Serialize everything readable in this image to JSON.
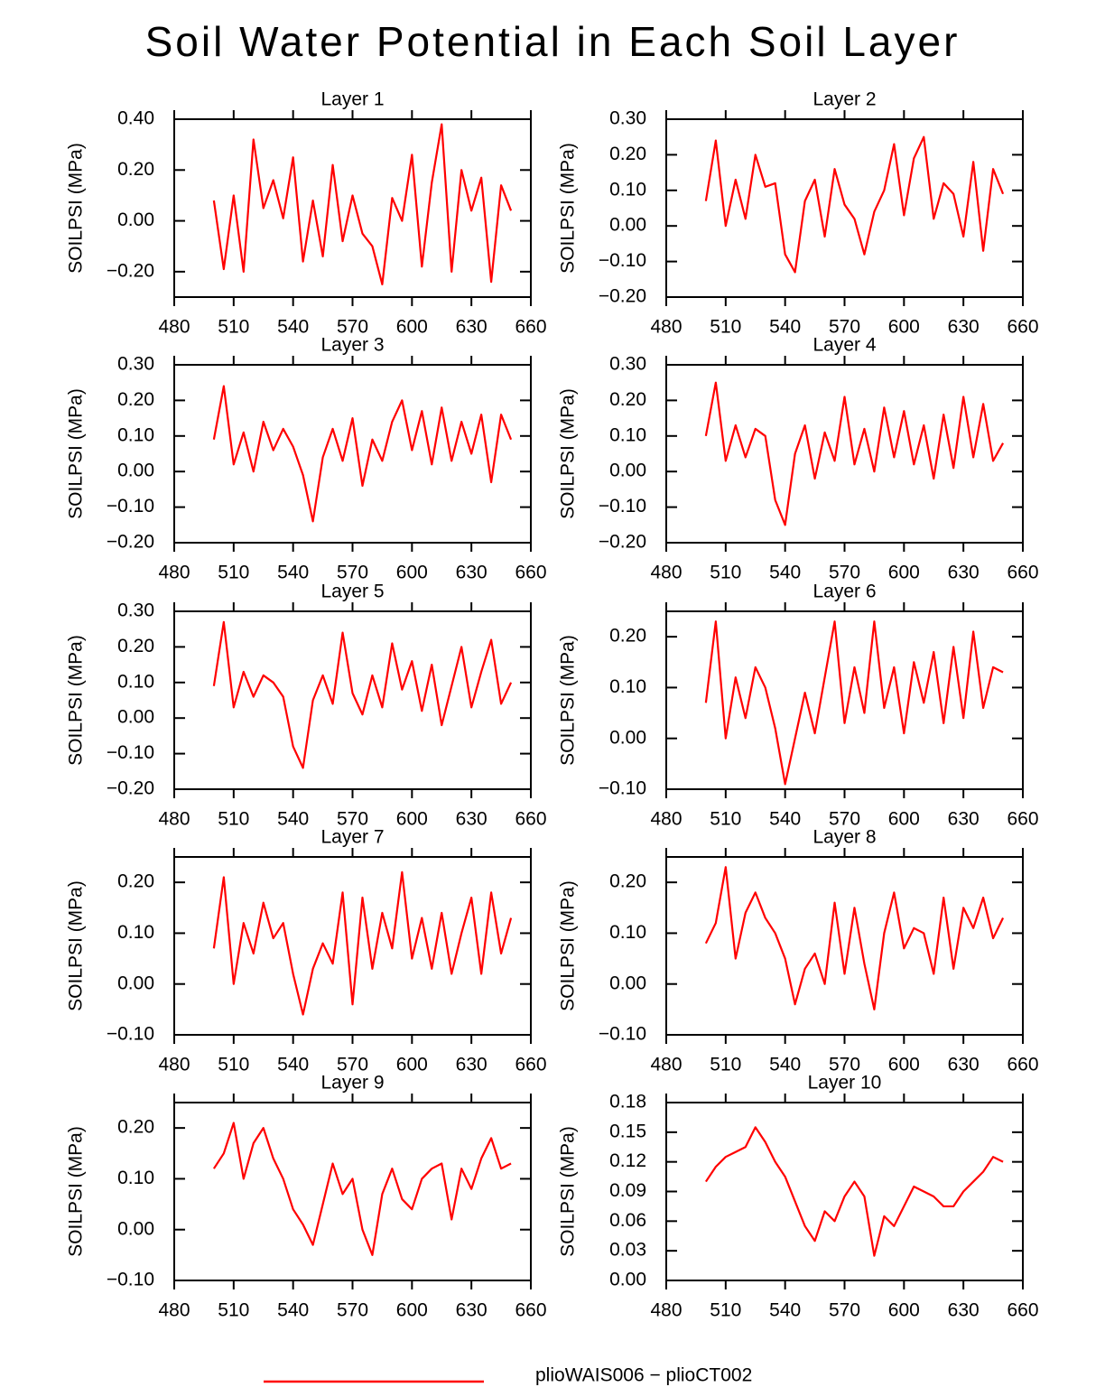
{
  "title": "Soil Water Potential in Each Soil Layer",
  "legend": {
    "label": "plioWAIS006 − plioCT002",
    "color": "#ff0000"
  },
  "chart_data": [
    {
      "type": "line",
      "title": "Layer 1",
      "ylabel": "SOILPSI  (MPa)",
      "x": [
        500,
        505,
        510,
        515,
        520,
        525,
        530,
        535,
        540,
        545,
        550,
        555,
        560,
        565,
        570,
        575,
        580,
        585,
        590,
        595,
        600,
        605,
        610,
        615,
        620,
        625,
        630,
        635,
        640,
        645,
        650
      ],
      "series": [
        {
          "color": "#ff0000",
          "values": [
            0.08,
            -0.19,
            0.1,
            -0.2,
            0.32,
            0.05,
            0.16,
            0.01,
            0.25,
            -0.16,
            0.08,
            -0.14,
            0.22,
            -0.08,
            0.1,
            -0.05,
            -0.1,
            -0.25,
            0.09,
            0.0,
            0.26,
            -0.18,
            0.15,
            0.38,
            -0.2,
            0.2,
            0.04,
            0.17,
            -0.24,
            0.14,
            0.04
          ]
        }
      ],
      "xlim": [
        480,
        660
      ],
      "xticks": [
        480,
        510,
        540,
        570,
        600,
        630,
        660
      ],
      "ylim": [
        -0.3,
        0.4
      ],
      "yticks": [
        {
          "value": -0.2,
          "label": "−0.20"
        },
        {
          "value": 0,
          "label": "0.00"
        },
        {
          "value": 0.2,
          "label": "0.20"
        },
        {
          "value": 0.4,
          "label": "0.40"
        }
      ]
    },
    {
      "type": "line",
      "title": "Layer 2",
      "ylabel": "SOILPSI  (MPa)",
      "x": [
        500,
        505,
        510,
        515,
        520,
        525,
        530,
        535,
        540,
        545,
        550,
        555,
        560,
        565,
        570,
        575,
        580,
        585,
        590,
        595,
        600,
        605,
        610,
        615,
        620,
        625,
        630,
        635,
        640,
        645,
        650
      ],
      "series": [
        {
          "color": "#ff0000",
          "values": [
            0.07,
            0.24,
            0.0,
            0.13,
            0.02,
            0.2,
            0.11,
            0.12,
            -0.08,
            -0.13,
            0.07,
            0.13,
            -0.03,
            0.16,
            0.06,
            0.02,
            -0.08,
            0.04,
            0.1,
            0.23,
            0.03,
            0.19,
            0.25,
            0.02,
            0.12,
            0.09,
            -0.03,
            0.18,
            -0.07,
            0.16,
            0.09
          ]
        }
      ],
      "xlim": [
        480,
        660
      ],
      "xticks": [
        480,
        510,
        540,
        570,
        600,
        630,
        660
      ],
      "ylim": [
        -0.2,
        0.3
      ],
      "yticks": [
        {
          "value": -0.2,
          "label": "−0.20"
        },
        {
          "value": -0.1,
          "label": "−0.10"
        },
        {
          "value": 0,
          "label": "0.00"
        },
        {
          "value": 0.1,
          "label": "0.10"
        },
        {
          "value": 0.2,
          "label": "0.20"
        },
        {
          "value": 0.3,
          "label": "0.30"
        }
      ]
    },
    {
      "type": "line",
      "title": "Layer 3",
      "ylabel": "SOILPSI  (MPa)",
      "x": [
        500,
        505,
        510,
        515,
        520,
        525,
        530,
        535,
        540,
        545,
        550,
        555,
        560,
        565,
        570,
        575,
        580,
        585,
        590,
        595,
        600,
        605,
        610,
        615,
        620,
        625,
        630,
        635,
        640,
        645,
        650
      ],
      "series": [
        {
          "color": "#ff0000",
          "values": [
            0.09,
            0.24,
            0.02,
            0.11,
            0.0,
            0.14,
            0.06,
            0.12,
            0.07,
            -0.01,
            -0.14,
            0.04,
            0.12,
            0.03,
            0.15,
            -0.04,
            0.09,
            0.03,
            0.14,
            0.2,
            0.06,
            0.17,
            0.02,
            0.18,
            0.03,
            0.14,
            0.05,
            0.16,
            -0.03,
            0.16,
            0.09
          ]
        }
      ],
      "xlim": [
        480,
        660
      ],
      "xticks": [
        480,
        510,
        540,
        570,
        600,
        630,
        660
      ],
      "ylim": [
        -0.2,
        0.3
      ],
      "yticks": [
        {
          "value": -0.2,
          "label": "−0.20"
        },
        {
          "value": -0.1,
          "label": "−0.10"
        },
        {
          "value": 0,
          "label": "0.00"
        },
        {
          "value": 0.1,
          "label": "0.10"
        },
        {
          "value": 0.2,
          "label": "0.20"
        },
        {
          "value": 0.3,
          "label": "0.30"
        }
      ]
    },
    {
      "type": "line",
      "title": "Layer 4",
      "ylabel": "SOILPSI  (MPa)",
      "x": [
        500,
        505,
        510,
        515,
        520,
        525,
        530,
        535,
        540,
        545,
        550,
        555,
        560,
        565,
        570,
        575,
        580,
        585,
        590,
        595,
        600,
        605,
        610,
        615,
        620,
        625,
        630,
        635,
        640,
        645,
        650
      ],
      "series": [
        {
          "color": "#ff0000",
          "values": [
            0.1,
            0.25,
            0.03,
            0.13,
            0.04,
            0.12,
            0.1,
            -0.08,
            -0.15,
            0.05,
            0.13,
            -0.02,
            0.11,
            0.03,
            0.21,
            0.02,
            0.12,
            0.0,
            0.18,
            0.04,
            0.17,
            0.02,
            0.13,
            -0.02,
            0.16,
            0.01,
            0.21,
            0.04,
            0.19,
            0.03,
            0.08
          ]
        }
      ],
      "xlim": [
        480,
        660
      ],
      "xticks": [
        480,
        510,
        540,
        570,
        600,
        630,
        660
      ],
      "ylim": [
        -0.2,
        0.3
      ],
      "yticks": [
        {
          "value": -0.2,
          "label": "−0.20"
        },
        {
          "value": -0.1,
          "label": "−0.10"
        },
        {
          "value": 0,
          "label": "0.00"
        },
        {
          "value": 0.1,
          "label": "0.10"
        },
        {
          "value": 0.2,
          "label": "0.20"
        },
        {
          "value": 0.3,
          "label": "0.30"
        }
      ]
    },
    {
      "type": "line",
      "title": "Layer 5",
      "ylabel": "SOILPSI  (MPa)",
      "x": [
        500,
        505,
        510,
        515,
        520,
        525,
        530,
        535,
        540,
        545,
        550,
        555,
        560,
        565,
        570,
        575,
        580,
        585,
        590,
        595,
        600,
        605,
        610,
        615,
        620,
        625,
        630,
        635,
        640,
        645,
        650
      ],
      "series": [
        {
          "color": "#ff0000",
          "values": [
            0.09,
            0.27,
            0.03,
            0.13,
            0.06,
            0.12,
            0.1,
            0.06,
            -0.08,
            -0.14,
            0.05,
            0.12,
            0.04,
            0.24,
            0.07,
            0.01,
            0.12,
            0.03,
            0.21,
            0.08,
            0.16,
            0.02,
            0.15,
            -0.02,
            0.09,
            0.2,
            0.03,
            0.13,
            0.22,
            0.04,
            0.1
          ]
        }
      ],
      "xlim": [
        480,
        660
      ],
      "xticks": [
        480,
        510,
        540,
        570,
        600,
        630,
        660
      ],
      "ylim": [
        -0.2,
        0.3
      ],
      "yticks": [
        {
          "value": -0.2,
          "label": "−0.20"
        },
        {
          "value": -0.1,
          "label": "−0.10"
        },
        {
          "value": 0,
          "label": "0.00"
        },
        {
          "value": 0.1,
          "label": "0.10"
        },
        {
          "value": 0.2,
          "label": "0.20"
        },
        {
          "value": 0.3,
          "label": "0.30"
        }
      ]
    },
    {
      "type": "line",
      "title": "Layer 6",
      "ylabel": "SOILPSI  (MPa)",
      "x": [
        500,
        505,
        510,
        515,
        520,
        525,
        530,
        535,
        540,
        545,
        550,
        555,
        560,
        565,
        570,
        575,
        580,
        585,
        590,
        595,
        600,
        605,
        610,
        615,
        620,
        625,
        630,
        635,
        640,
        645,
        650
      ],
      "series": [
        {
          "color": "#ff0000",
          "values": [
            0.07,
            0.23,
            0.0,
            0.12,
            0.04,
            0.14,
            0.1,
            0.02,
            -0.09,
            0.0,
            0.09,
            0.01,
            0.12,
            0.23,
            0.03,
            0.14,
            0.05,
            0.23,
            0.06,
            0.14,
            0.01,
            0.15,
            0.07,
            0.17,
            0.03,
            0.18,
            0.04,
            0.21,
            0.06,
            0.14,
            0.13
          ]
        }
      ],
      "xlim": [
        480,
        660
      ],
      "xticks": [
        480,
        510,
        540,
        570,
        600,
        630,
        660
      ],
      "ylim": [
        -0.1,
        0.25
      ],
      "yticks": [
        {
          "value": -0.1,
          "label": "−0.10"
        },
        {
          "value": 0,
          "label": "0.00"
        },
        {
          "value": 0.1,
          "label": "0.10"
        },
        {
          "value": 0.2,
          "label": "0.20"
        }
      ]
    },
    {
      "type": "line",
      "title": "Layer 7",
      "ylabel": "SOILPSI  (MPa)",
      "x": [
        500,
        505,
        510,
        515,
        520,
        525,
        530,
        535,
        540,
        545,
        550,
        555,
        560,
        565,
        570,
        575,
        580,
        585,
        590,
        595,
        600,
        605,
        610,
        615,
        620,
        625,
        630,
        635,
        640,
        645,
        650
      ],
      "series": [
        {
          "color": "#ff0000",
          "values": [
            0.07,
            0.21,
            0.0,
            0.12,
            0.06,
            0.16,
            0.09,
            0.12,
            0.02,
            -0.06,
            0.03,
            0.08,
            0.04,
            0.18,
            -0.04,
            0.17,
            0.03,
            0.14,
            0.07,
            0.22,
            0.05,
            0.13,
            0.03,
            0.14,
            0.02,
            0.1,
            0.17,
            0.02,
            0.18,
            0.06,
            0.13
          ]
        }
      ],
      "xlim": [
        480,
        660
      ],
      "xticks": [
        480,
        510,
        540,
        570,
        600,
        630,
        660
      ],
      "ylim": [
        -0.1,
        0.25
      ],
      "yticks": [
        {
          "value": -0.1,
          "label": "−0.10"
        },
        {
          "value": 0,
          "label": "0.00"
        },
        {
          "value": 0.1,
          "label": "0.10"
        },
        {
          "value": 0.2,
          "label": "0.20"
        }
      ]
    },
    {
      "type": "line",
      "title": "Layer 8",
      "ylabel": "SOILPSI  (MPa)",
      "x": [
        500,
        505,
        510,
        515,
        520,
        525,
        530,
        535,
        540,
        545,
        550,
        555,
        560,
        565,
        570,
        575,
        580,
        585,
        590,
        595,
        600,
        605,
        610,
        615,
        620,
        625,
        630,
        635,
        640,
        645,
        650
      ],
      "series": [
        {
          "color": "#ff0000",
          "values": [
            0.08,
            0.12,
            0.23,
            0.05,
            0.14,
            0.18,
            0.13,
            0.1,
            0.05,
            -0.04,
            0.03,
            0.06,
            0.0,
            0.16,
            0.02,
            0.15,
            0.04,
            -0.05,
            0.1,
            0.18,
            0.07,
            0.11,
            0.1,
            0.02,
            0.17,
            0.03,
            0.15,
            0.11,
            0.17,
            0.09,
            0.13
          ]
        }
      ],
      "xlim": [
        480,
        660
      ],
      "xticks": [
        480,
        510,
        540,
        570,
        600,
        630,
        660
      ],
      "ylim": [
        -0.1,
        0.25
      ],
      "yticks": [
        {
          "value": -0.1,
          "label": "−0.10"
        },
        {
          "value": 0,
          "label": "0.00"
        },
        {
          "value": 0.1,
          "label": "0.10"
        },
        {
          "value": 0.2,
          "label": "0.20"
        }
      ]
    },
    {
      "type": "line",
      "title": "Layer 9",
      "ylabel": "SOILPSI  (MPa)",
      "x": [
        500,
        505,
        510,
        515,
        520,
        525,
        530,
        535,
        540,
        545,
        550,
        555,
        560,
        565,
        570,
        575,
        580,
        585,
        590,
        595,
        600,
        605,
        610,
        615,
        620,
        625,
        630,
        635,
        640,
        645,
        650
      ],
      "series": [
        {
          "color": "#ff0000",
          "values": [
            0.12,
            0.15,
            0.21,
            0.1,
            0.17,
            0.2,
            0.14,
            0.1,
            0.04,
            0.01,
            -0.03,
            0.05,
            0.13,
            0.07,
            0.1,
            0.0,
            -0.05,
            0.07,
            0.12,
            0.06,
            0.04,
            0.1,
            0.12,
            0.13,
            0.02,
            0.12,
            0.08,
            0.14,
            0.18,
            0.12,
            0.13
          ]
        }
      ],
      "xlim": [
        480,
        660
      ],
      "xticks": [
        480,
        510,
        540,
        570,
        600,
        630,
        660
      ],
      "ylim": [
        -0.1,
        0.25
      ],
      "yticks": [
        {
          "value": -0.1,
          "label": "−0.10"
        },
        {
          "value": 0,
          "label": "0.00"
        },
        {
          "value": 0.1,
          "label": "0.10"
        },
        {
          "value": 0.2,
          "label": "0.20"
        }
      ]
    },
    {
      "type": "line",
      "title": "Layer 10",
      "ylabel": "SOILPSI  (MPa)",
      "x": [
        500,
        505,
        510,
        515,
        520,
        525,
        530,
        535,
        540,
        545,
        550,
        555,
        560,
        565,
        570,
        575,
        580,
        585,
        590,
        595,
        600,
        605,
        610,
        615,
        620,
        625,
        630,
        635,
        640,
        645,
        650
      ],
      "series": [
        {
          "color": "#ff0000",
          "values": [
            0.1,
            0.115,
            0.125,
            0.13,
            0.135,
            0.155,
            0.14,
            0.12,
            0.105,
            0.08,
            0.055,
            0.04,
            0.07,
            0.06,
            0.085,
            0.1,
            0.085,
            0.025,
            0.065,
            0.055,
            0.075,
            0.095,
            0.09,
            0.085,
            0.075,
            0.075,
            0.09,
            0.1,
            0.11,
            0.125,
            0.12
          ]
        }
      ],
      "xlim": [
        480,
        660
      ],
      "xticks": [
        480,
        510,
        540,
        570,
        600,
        630,
        660
      ],
      "ylim": [
        0,
        0.18
      ],
      "yticks": [
        {
          "value": 0,
          "label": "0.00"
        },
        {
          "value": 0.03,
          "label": "0.03"
        },
        {
          "value": 0.06,
          "label": "0.06"
        },
        {
          "value": 0.09,
          "label": "0.09"
        },
        {
          "value": 0.12,
          "label": "0.12"
        },
        {
          "value": 0.15,
          "label": "0.15"
        },
        {
          "value": 0.18,
          "label": "0.18"
        }
      ]
    }
  ]
}
